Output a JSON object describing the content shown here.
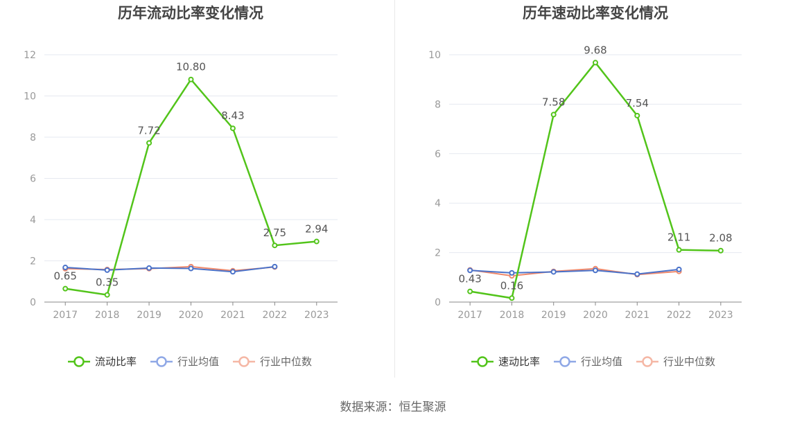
{
  "source": "数据来源：恒生聚源",
  "colors": {
    "series1": "#52c41a",
    "series2": "#4a72c9",
    "series3": "#f0896b",
    "legend2": "#8fa8e6",
    "legend3": "#f5b7a5",
    "axis": "#888888",
    "grid": "#e6e9f0",
    "text": "#999999"
  },
  "chart_data": [
    {
      "type": "line",
      "title": "历年流动比率变化情况",
      "categories": [
        "2017",
        "2018",
        "2019",
        "2020",
        "2021",
        "2022",
        "2023"
      ],
      "ylim": [
        0,
        12
      ],
      "yticks": [
        0,
        2,
        4,
        6,
        8,
        10,
        12
      ],
      "grid": true,
      "legend_position": "bottom",
      "series": [
        {
          "name": "流动比率",
          "values": [
            0.65,
            0.35,
            7.72,
            10.8,
            8.43,
            2.75,
            2.94
          ],
          "labels": [
            "0.65",
            "0.35",
            "7.72",
            "10.80",
            "8.43",
            "2.75",
            "2.94"
          ]
        },
        {
          "name": "行业均值",
          "values": [
            1.68,
            1.55,
            1.65,
            1.63,
            1.47,
            1.72,
            null
          ]
        },
        {
          "name": "行业中位数",
          "values": [
            1.62,
            1.58,
            1.62,
            1.72,
            1.52,
            1.7,
            null
          ]
        }
      ]
    },
    {
      "type": "line",
      "title": "历年速动比率变化情况",
      "categories": [
        "2017",
        "2018",
        "2019",
        "2020",
        "2021",
        "2022",
        "2023"
      ],
      "ylim": [
        0,
        10
      ],
      "yticks": [
        0,
        2,
        4,
        6,
        8,
        10
      ],
      "grid": true,
      "legend_position": "bottom",
      "series": [
        {
          "name": "速动比率",
          "values": [
            0.43,
            0.16,
            7.58,
            9.68,
            7.54,
            2.11,
            2.08
          ],
          "labels": [
            "0.43",
            "0.16",
            "7.58",
            "9.68",
            "7.54",
            "2.11",
            "2.08"
          ]
        },
        {
          "name": "行业均值",
          "values": [
            1.28,
            1.18,
            1.22,
            1.28,
            1.13,
            1.32,
            null
          ]
        },
        {
          "name": "行业中位数",
          "values": [
            1.3,
            1.06,
            1.24,
            1.35,
            1.11,
            1.24,
            null
          ]
        }
      ]
    }
  ]
}
